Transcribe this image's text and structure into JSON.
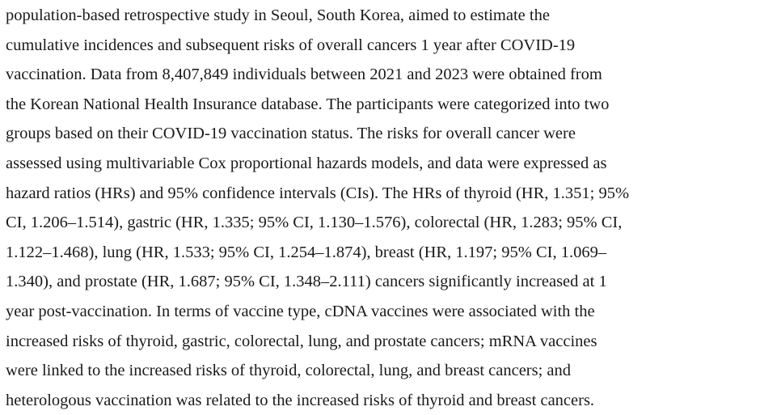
{
  "paragraph": {
    "lines": [
      "population-based retrospective study in Seoul, South Korea, aimed to estimate the",
      "cumulative incidences and subsequent risks of overall cancers 1 year after COVID-19",
      "vaccination. Data from 8,407,849 individuals between 2021 and 2023 were obtained from",
      "the Korean National Health Insurance database. The participants were categorized into two",
      "groups based on their COVID-19 vaccination status. The risks for overall cancer were",
      "assessed using multivariable Cox proportional hazards models, and data were expressed as",
      "hazard ratios (HRs) and 95% confidence intervals (CIs). The HRs of thyroid (HR, 1.351; 95%",
      "CI, 1.206–1.514), gastric (HR, 1.335; 95% CI, 1.130–1.576), colorectal (HR, 1.283; 95% CI,",
      "1.122–1.468), lung (HR, 1.533; 95% CI, 1.254–1.874), breast (HR, 1.197; 95% CI, 1.069–",
      "1.340), and prostate (HR, 1.687; 95% CI, 1.348–2.111) cancers significantly increased at 1",
      "year post-vaccination. In terms of vaccine type, cDNA vaccines were associated with the",
      "increased risks of thyroid, gastric, colorectal, lung, and prostate cancers; mRNA vaccines",
      "were linked to the increased risks of thyroid, colorectal, lung, and breast cancers; and",
      "heterologous vaccination was related to the increased risks of thyroid and breast cancers."
    ]
  }
}
